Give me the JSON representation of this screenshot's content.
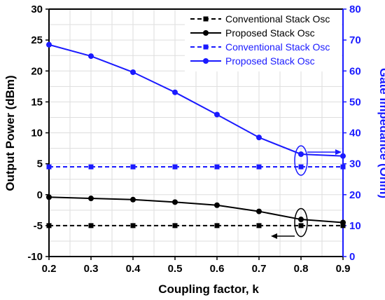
{
  "chart_data": {
    "type": "line",
    "xlabel": "Coupling factor, k",
    "ylabel_left": "Output Power (dBm)",
    "ylabel_right": "Gate Impedance (Ohm)",
    "x": [
      0.2,
      0.3,
      0.4,
      0.5,
      0.6,
      0.7,
      0.8,
      0.9
    ],
    "x_ticks": [
      "0.2",
      "0.3",
      "0.4",
      "0.5",
      "0.6",
      "0.7",
      "0.8",
      "0.9"
    ],
    "xlim": [
      0.2,
      0.9
    ],
    "ylim_left": [
      -10,
      30
    ],
    "y_ticks_left": [
      "-10",
      "-5",
      "0",
      "5",
      "10",
      "15",
      "20",
      "25",
      "30"
    ],
    "ylim_right": [
      0,
      80
    ],
    "y_ticks_right": [
      "0",
      "10",
      "20",
      "30",
      "40",
      "50",
      "60",
      "70",
      "80"
    ],
    "grid": true,
    "legend_position": "top-right",
    "series": [
      {
        "name": "Conventional Stack Osc",
        "axis": "left",
        "color": "#000000",
        "line": "dashed",
        "marker": "square",
        "values": [
          -5,
          -5,
          -5,
          -5,
          -5,
          -5,
          -5,
          -5
        ]
      },
      {
        "name": "Proposed Stack Osc",
        "axis": "left",
        "color": "#000000",
        "line": "solid",
        "marker": "circle",
        "values": [
          -0.4,
          -0.6,
          -0.8,
          -1.2,
          -1.7,
          -2.7,
          -4.0,
          -4.5
        ]
      },
      {
        "name": "Conventional Stack Osc",
        "axis": "right",
        "color": "#1a1aff",
        "line": "dashed",
        "marker": "square",
        "values": [
          29,
          29,
          29,
          29,
          29,
          29,
          29,
          29
        ]
      },
      {
        "name": "Proposed Stack Osc",
        "axis": "right",
        "color": "#1a1aff",
        "line": "solid",
        "marker": "circle",
        "values": [
          68.5,
          64.8,
          59.6,
          53.1,
          45.9,
          38.5,
          33.1,
          32.5
        ]
      }
    ]
  }
}
